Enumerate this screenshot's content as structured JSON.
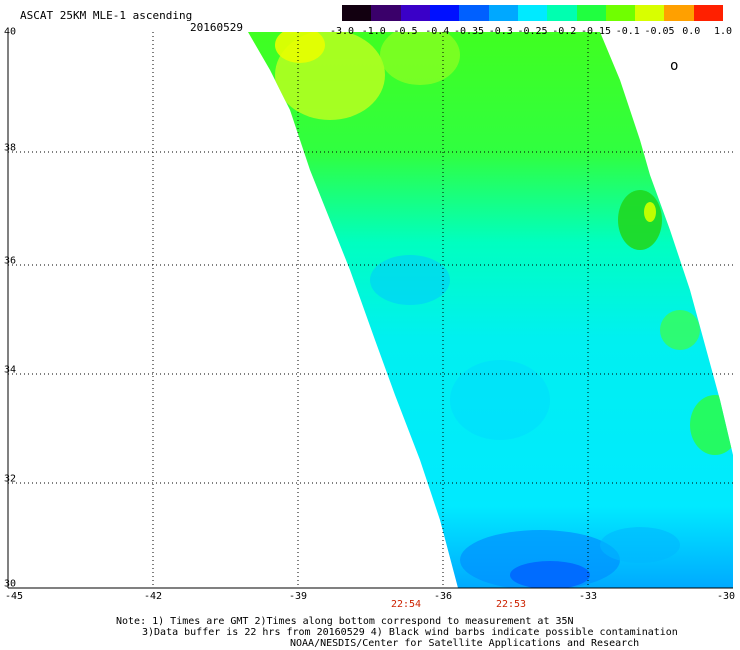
{
  "title": "ASCAT 25KM MLE-1 ascending",
  "date": "20160529",
  "colorbar": {
    "labels": [
      "-3.0",
      "-1.0",
      "-0.5",
      "-0.4",
      "-0.35",
      "-0.3",
      "-0.25",
      "-0.2",
      "-0.15",
      "-0.1",
      "-0.05",
      "0.0",
      "1.0"
    ],
    "colors": [
      "#120010",
      "#3a006a",
      "#3a00c8",
      "#0010ff",
      "#0060ff",
      "#00a8ff",
      "#00eaff",
      "#00ffb0",
      "#20ff40",
      "#70ff00",
      "#d8ff00",
      "#ffa000",
      "#ff2000"
    ]
  },
  "x_axis": {
    "labels": [
      "-45",
      "-42",
      "-39",
      "-36",
      "-33",
      "-30"
    ]
  },
  "y_axis": {
    "labels": [
      "40",
      "38",
      "36",
      "34",
      "32",
      "30"
    ]
  },
  "times": [
    {
      "label": "22:54"
    },
    {
      "label": "22:53"
    }
  ],
  "notes": [
    "Note: 1) Times are GMT 2)Times along bottom correspond to measurement at 35N",
    "3)Data buffer is 22 hrs from 20160529 4) Black wind barbs indicate possible contamination",
    "NOAA/NESDIS/Center for Satellite Applications and Research"
  ],
  "marker_text": "o"
}
